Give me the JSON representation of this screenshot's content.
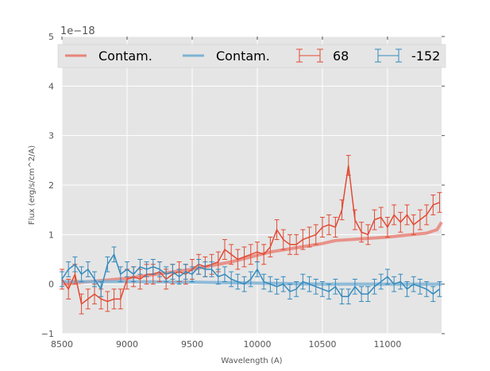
{
  "chart_data": {
    "type": "line",
    "title": "",
    "xlabel": "Wavelength (A)",
    "ylabel": "Flux (erg/s/cm^2/A)",
    "y_offset_label": "1e−18",
    "xlim": [
      8500,
      11415
    ],
    "ylim": [
      -1,
      5
    ],
    "xticks": [
      8500,
      9000,
      9500,
      10000,
      10500,
      11000
    ],
    "xtick_labels": [
      "8500",
      "9000",
      "9500",
      "10000",
      "10500",
      "11000"
    ],
    "yticks": [
      -1,
      0,
      1,
      2,
      3,
      4,
      5
    ],
    "ytick_labels": [
      "−1",
      "0",
      "1",
      "2",
      "3",
      "4",
      "5"
    ],
    "grid": true,
    "legend_placement": "top",
    "legend": [
      "Contam.",
      "Contam.",
      "68",
      "-152"
    ],
    "x": [
      8500,
      8550,
      8600,
      8650,
      8700,
      8750,
      8800,
      8850,
      8900,
      8950,
      9000,
      9050,
      9100,
      9150,
      9200,
      9250,
      9300,
      9350,
      9400,
      9450,
      9500,
      9550,
      9600,
      9650,
      9700,
      9750,
      9800,
      9850,
      9900,
      9950,
      10000,
      10050,
      10100,
      10150,
      10200,
      10250,
      10300,
      10350,
      10400,
      10450,
      10500,
      10550,
      10600,
      10650,
      10700,
      10750,
      10800,
      10850,
      10900,
      10950,
      11000,
      11050,
      11100,
      11150,
      11200,
      11250,
      11300,
      11350,
      11400
    ],
    "series": [
      {
        "name": "68",
        "color": "#e24a33",
        "error": 0.2,
        "values": [
          0.1,
          -0.1,
          0.2,
          -0.4,
          -0.3,
          -0.2,
          -0.3,
          -0.35,
          -0.3,
          -0.3,
          0.1,
          0.15,
          0.1,
          0.2,
          0.2,
          0.25,
          0.1,
          0.2,
          0.25,
          0.2,
          0.3,
          0.4,
          0.35,
          0.4,
          0.45,
          0.7,
          0.6,
          0.5,
          0.55,
          0.6,
          0.65,
          0.6,
          0.75,
          1.1,
          0.9,
          0.8,
          0.8,
          0.9,
          0.95,
          1.0,
          1.15,
          1.2,
          1.15,
          1.5,
          2.4,
          1.3,
          1.05,
          1.0,
          1.3,
          1.35,
          1.15,
          1.4,
          1.25,
          1.4,
          1.2,
          1.3,
          1.4,
          1.6,
          1.65
        ]
      },
      {
        "name": "-152",
        "color": "#348abd",
        "error": 0.15,
        "values": [
          0.1,
          0.3,
          0.4,
          0.2,
          0.3,
          0.1,
          -0.1,
          0.4,
          0.6,
          0.2,
          0.3,
          0.2,
          0.35,
          0.3,
          0.35,
          0.3,
          0.2,
          0.25,
          0.15,
          0.25,
          0.2,
          0.35,
          0.3,
          0.3,
          0.15,
          0.2,
          0.1,
          0.05,
          0.0,
          0.1,
          0.3,
          0.05,
          0.0,
          -0.05,
          0.0,
          -0.15,
          -0.1,
          0.05,
          0.0,
          -0.05,
          -0.1,
          -0.15,
          -0.05,
          -0.25,
          -0.25,
          -0.05,
          -0.2,
          -0.2,
          -0.05,
          0.05,
          0.15,
          0.0,
          0.05,
          -0.1,
          0.0,
          -0.05,
          -0.1,
          -0.2,
          -0.1
        ]
      }
    ],
    "contam": [
      {
        "name": "Contam.",
        "color": "#e8857a",
        "x": [
          8500,
          9000,
          9500,
          9800,
          10100,
          10500,
          10600,
          11000,
          11300,
          11380,
          11415
        ],
        "values": [
          0.0,
          0.12,
          0.3,
          0.45,
          0.65,
          0.82,
          0.88,
          0.95,
          1.03,
          1.1,
          1.25
        ]
      },
      {
        "name": "Contam.",
        "color": "#7fb3d5",
        "x": [
          8500,
          9000,
          9500,
          10000,
          10500,
          11000,
          11415
        ],
        "values": [
          0.05,
          0.05,
          0.04,
          0.02,
          0.0,
          0.0,
          0.0
        ]
      }
    ]
  }
}
